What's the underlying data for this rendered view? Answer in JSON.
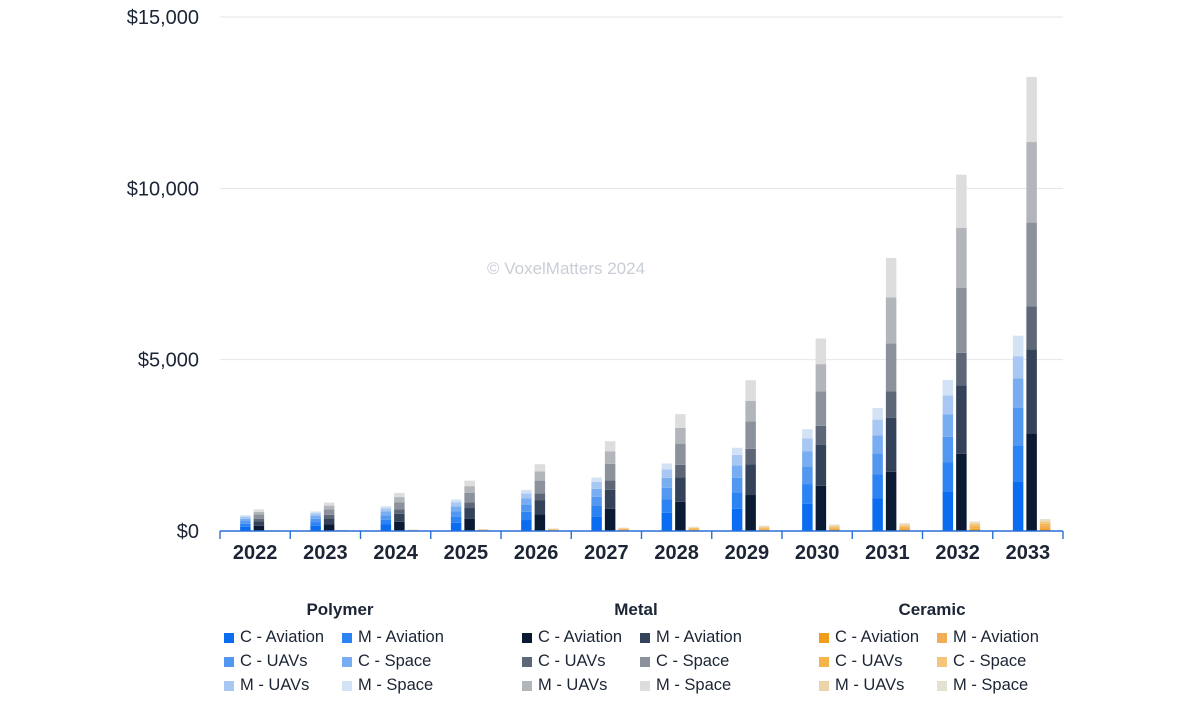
{
  "chart_data": {
    "type": "bar",
    "stacked": true,
    "watermark": "© VoxelMatters 2024",
    "categories": [
      "2022",
      "2023",
      "2024",
      "2025",
      "2026",
      "2027",
      "2028",
      "2029",
      "2030",
      "2031",
      "2032",
      "2033"
    ],
    "y_ticks": [
      "$0",
      "$5,000",
      "$10,000",
      "$15,000"
    ],
    "ylim": [
      0,
      15000
    ],
    "grid": true,
    "groups": [
      {
        "name": "Polymer",
        "series": [
          {
            "name": "C - Aviation",
            "color": "#0a6cf0",
            "values": [
              120,
              150,
              190,
              240,
              320,
              420,
              530,
              650,
              790,
              950,
              1150,
              1450
            ]
          },
          {
            "name": "M - Aviation",
            "color": "#2c83f3",
            "values": [
              90,
              110,
              140,
              180,
              240,
              310,
              390,
              480,
              580,
              700,
              850,
              1050
            ]
          },
          {
            "name": "C - UAVs",
            "color": "#5398f0",
            "values": [
              80,
              100,
              130,
              160,
              210,
              270,
              340,
              420,
              510,
              610,
              750,
              1100
            ]
          },
          {
            "name": "C - Space",
            "color": "#78adf2",
            "values": [
              70,
              90,
              110,
              140,
              180,
              230,
              290,
              360,
              440,
              530,
              650,
              850
            ]
          },
          {
            "name": "M - UAVs",
            "color": "#a8c8f3",
            "values": [
              60,
              70,
              90,
              120,
              150,
              200,
              250,
              310,
              380,
              460,
              560,
              650
            ]
          },
          {
            "name": "M - Space",
            "color": "#d3e2f5",
            "values": [
              40,
              50,
              60,
              80,
              100,
              130,
              170,
              210,
              270,
              340,
              450,
              600
            ]
          }
        ]
      },
      {
        "name": "Metal",
        "series": [
          {
            "name": "C - Aviation",
            "color": "#0b1a33",
            "values": [
              150,
              200,
              270,
              360,
              480,
              650,
              850,
              1050,
              1320,
              1730,
              2250,
              2850
            ]
          },
          {
            "name": "M - Aviation",
            "color": "#34435a",
            "values": [
              130,
              170,
              230,
              310,
              410,
              550,
              720,
              900,
              1200,
              1570,
              2000,
              2450
            ]
          },
          {
            "name": "C - UAVs",
            "color": "#5d6778",
            "values": [
              80,
              100,
              130,
              160,
              210,
              280,
              360,
              450,
              550,
              770,
              950,
              1250
            ]
          },
          {
            "name": "C - Space",
            "color": "#8c929c",
            "values": [
              120,
              160,
              210,
              280,
              370,
              480,
              620,
              800,
              1000,
              1400,
              1900,
              2450
            ]
          },
          {
            "name": "M - UAVs",
            "color": "#b2b5ba",
            "values": [
              80,
              110,
              150,
              200,
              270,
              360,
              460,
              600,
              800,
              1350,
              1750,
              2350
            ]
          },
          {
            "name": "M - Space",
            "color": "#dddddd",
            "values": [
              70,
              90,
              120,
              160,
              210,
              300,
              400,
              600,
              750,
              1150,
              1550,
              1900
            ]
          }
        ]
      },
      {
        "name": "Ceramic",
        "series": [
          {
            "name": "C - Aviation",
            "color": "#f29d1a",
            "values": [
              5,
              8,
              11,
              15,
              20,
              25,
              30,
              35,
              45,
              55,
              65,
              80
            ]
          },
          {
            "name": "M - Aviation",
            "color": "#f2ad57",
            "values": [
              5,
              7,
              9,
              12,
              15,
              20,
              25,
              30,
              35,
              45,
              55,
              70
            ]
          },
          {
            "name": "C - UAVs",
            "color": "#f3b54a",
            "values": [
              4,
              5,
              7,
              9,
              12,
              15,
              20,
              25,
              30,
              35,
              45,
              60
            ]
          },
          {
            "name": "C - Space",
            "color": "#f5c57c",
            "values": [
              4,
              5,
              7,
              9,
              12,
              15,
              20,
              25,
              30,
              35,
              45,
              55
            ]
          },
          {
            "name": "M - UAVs",
            "color": "#edd3a8",
            "values": [
              3,
              4,
              5,
              7,
              9,
              12,
              15,
              20,
              25,
              30,
              35,
              45
            ]
          },
          {
            "name": "M - Space",
            "color": "#e3e1cf",
            "values": [
              3,
              4,
              5,
              7,
              9,
              12,
              15,
              20,
              25,
              30,
              35,
              40
            ]
          }
        ]
      }
    ]
  }
}
